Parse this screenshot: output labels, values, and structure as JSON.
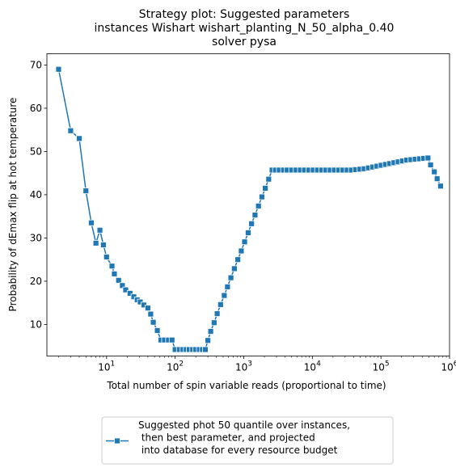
{
  "chart_data": {
    "type": "line",
    "title_lines": [
      "Strategy plot: Suggested parameters",
      "instances Wishart wishart_planting_N_50_alpha_0.40",
      "solver pysa"
    ],
    "xlabel": "Total number of spin variable reads (proportional to time)",
    "ylabel": "Probability of dEmax flip at hot temperature",
    "xscale": "log",
    "xlim": [
      1.35,
      1000000
    ],
    "ylim": [
      2.7,
      72.6
    ],
    "yticks": [
      10,
      20,
      30,
      40,
      50,
      60,
      70
    ],
    "xticks": [
      {
        "value": 10,
        "base": "10",
        "exp": "1"
      },
      {
        "value": 100,
        "base": "10",
        "exp": "2"
      },
      {
        "value": 1000,
        "base": "10",
        "exp": "3"
      },
      {
        "value": 10000,
        "base": "10",
        "exp": "4"
      },
      {
        "value": 100000,
        "base": "10",
        "exp": "5"
      },
      {
        "value": 1000000,
        "base": "10",
        "exp": "6"
      }
    ],
    "grid": false,
    "legend_position": "below",
    "series": [
      {
        "name": "Suggested phot 50 quantile over instances,\n then best parameter, and projected\n into database for every resource budget",
        "color": "#1f77b4",
        "marker": "square",
        "x": [
          2,
          3,
          4,
          5,
          6,
          7,
          8,
          9,
          10,
          12,
          13,
          15,
          17,
          19,
          22,
          25,
          28,
          31,
          35,
          40,
          44,
          48,
          55,
          62,
          70,
          80,
          90,
          100,
          115,
          130,
          145,
          160,
          180,
          200,
          225,
          250,
          275,
          300,
          330,
          370,
          410,
          460,
          520,
          580,
          650,
          730,
          820,
          920,
          1030,
          1160,
          1300,
          1460,
          1640,
          1840,
          2060,
          2310,
          2590,
          2900,
          3300,
          3800,
          4300,
          5000,
          5800,
          6700,
          7700,
          8900,
          10300,
          11900,
          13700,
          15800,
          18200,
          21000,
          24200,
          27900,
          32200,
          37100,
          42800,
          49400,
          57000,
          65700,
          75800,
          87400,
          100800,
          116300,
          134100,
          154700,
          178400,
          205800,
          237400,
          273800,
          315800,
          364300,
          420200,
          484700,
          530000,
          600000,
          660000,
          740000
        ],
        "y": [
          69.0,
          54.8,
          53.0,
          40.9,
          33.5,
          28.8,
          31.8,
          28.4,
          25.6,
          23.5,
          21.7,
          20.2,
          19.0,
          18.0,
          17.2,
          16.4,
          15.7,
          15.2,
          14.5,
          13.8,
          12.4,
          10.5,
          8.6,
          6.4,
          6.4,
          6.4,
          6.4,
          4.2,
          4.2,
          4.2,
          4.2,
          4.2,
          4.2,
          4.2,
          4.2,
          4.2,
          4.2,
          6.3,
          8.4,
          10.4,
          12.5,
          14.6,
          16.7,
          18.7,
          20.8,
          22.9,
          25.0,
          27.0,
          29.1,
          31.2,
          33.3,
          35.3,
          37.4,
          39.5,
          41.5,
          43.6,
          45.7,
          45.7,
          45.7,
          45.7,
          45.7,
          45.7,
          45.7,
          45.7,
          45.7,
          45.7,
          45.7,
          45.7,
          45.7,
          45.7,
          45.7,
          45.7,
          45.7,
          45.7,
          45.7,
          45.7,
          45.8,
          45.9,
          46.0,
          46.2,
          46.4,
          46.6,
          46.8,
          47.0,
          47.2,
          47.4,
          47.6,
          47.8,
          48.0,
          48.1,
          48.2,
          48.3,
          48.4,
          48.5,
          46.9,
          45.3,
          43.7,
          42.0
        ]
      }
    ]
  }
}
